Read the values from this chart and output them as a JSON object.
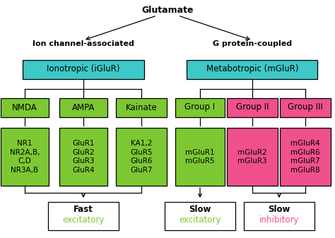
{
  "title": "Glutamate",
  "left_header": "Ion channel-associated",
  "right_header": "G protein-coupled",
  "cyan": "#3EC8C8",
  "green": "#7DC832",
  "pink": "#F0508C",
  "white": "#FFFFFF",
  "bg": "#FFFFFF",
  "lw": 0.9
}
